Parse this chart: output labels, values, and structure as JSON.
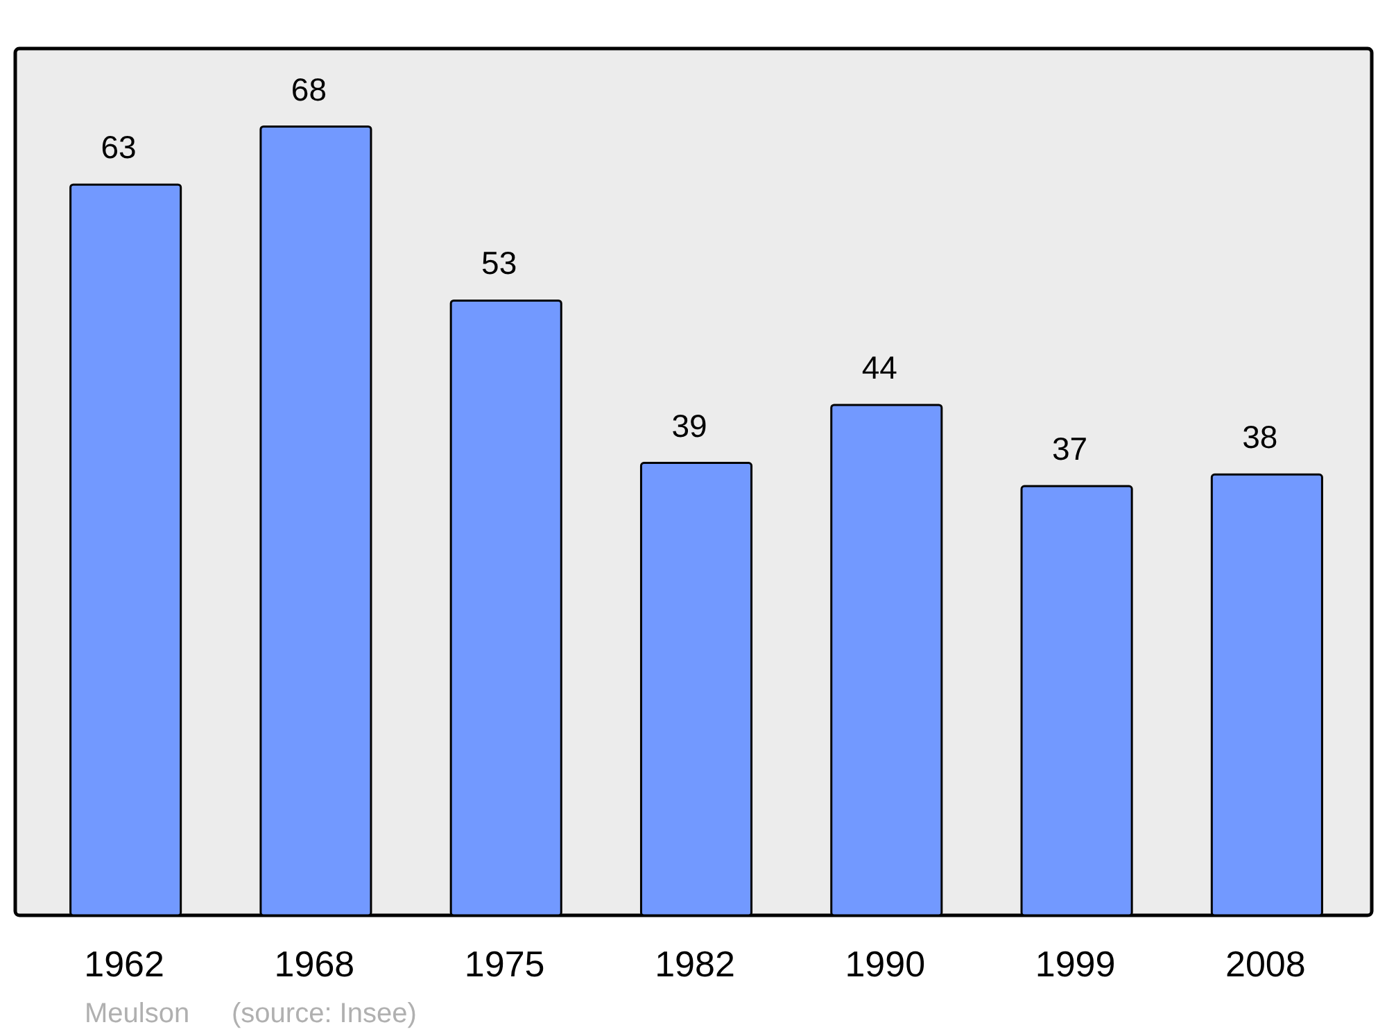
{
  "chart_data": {
    "type": "bar",
    "categories": [
      "1962",
      "1968",
      "1975",
      "1982",
      "1990",
      "1999",
      "2008"
    ],
    "values": [
      63,
      68,
      53,
      39,
      44,
      37,
      38
    ],
    "color": "#7299ff",
    "data_labels": true,
    "annotations": [
      "Meulson",
      "(source: Insee)"
    ]
  }
}
